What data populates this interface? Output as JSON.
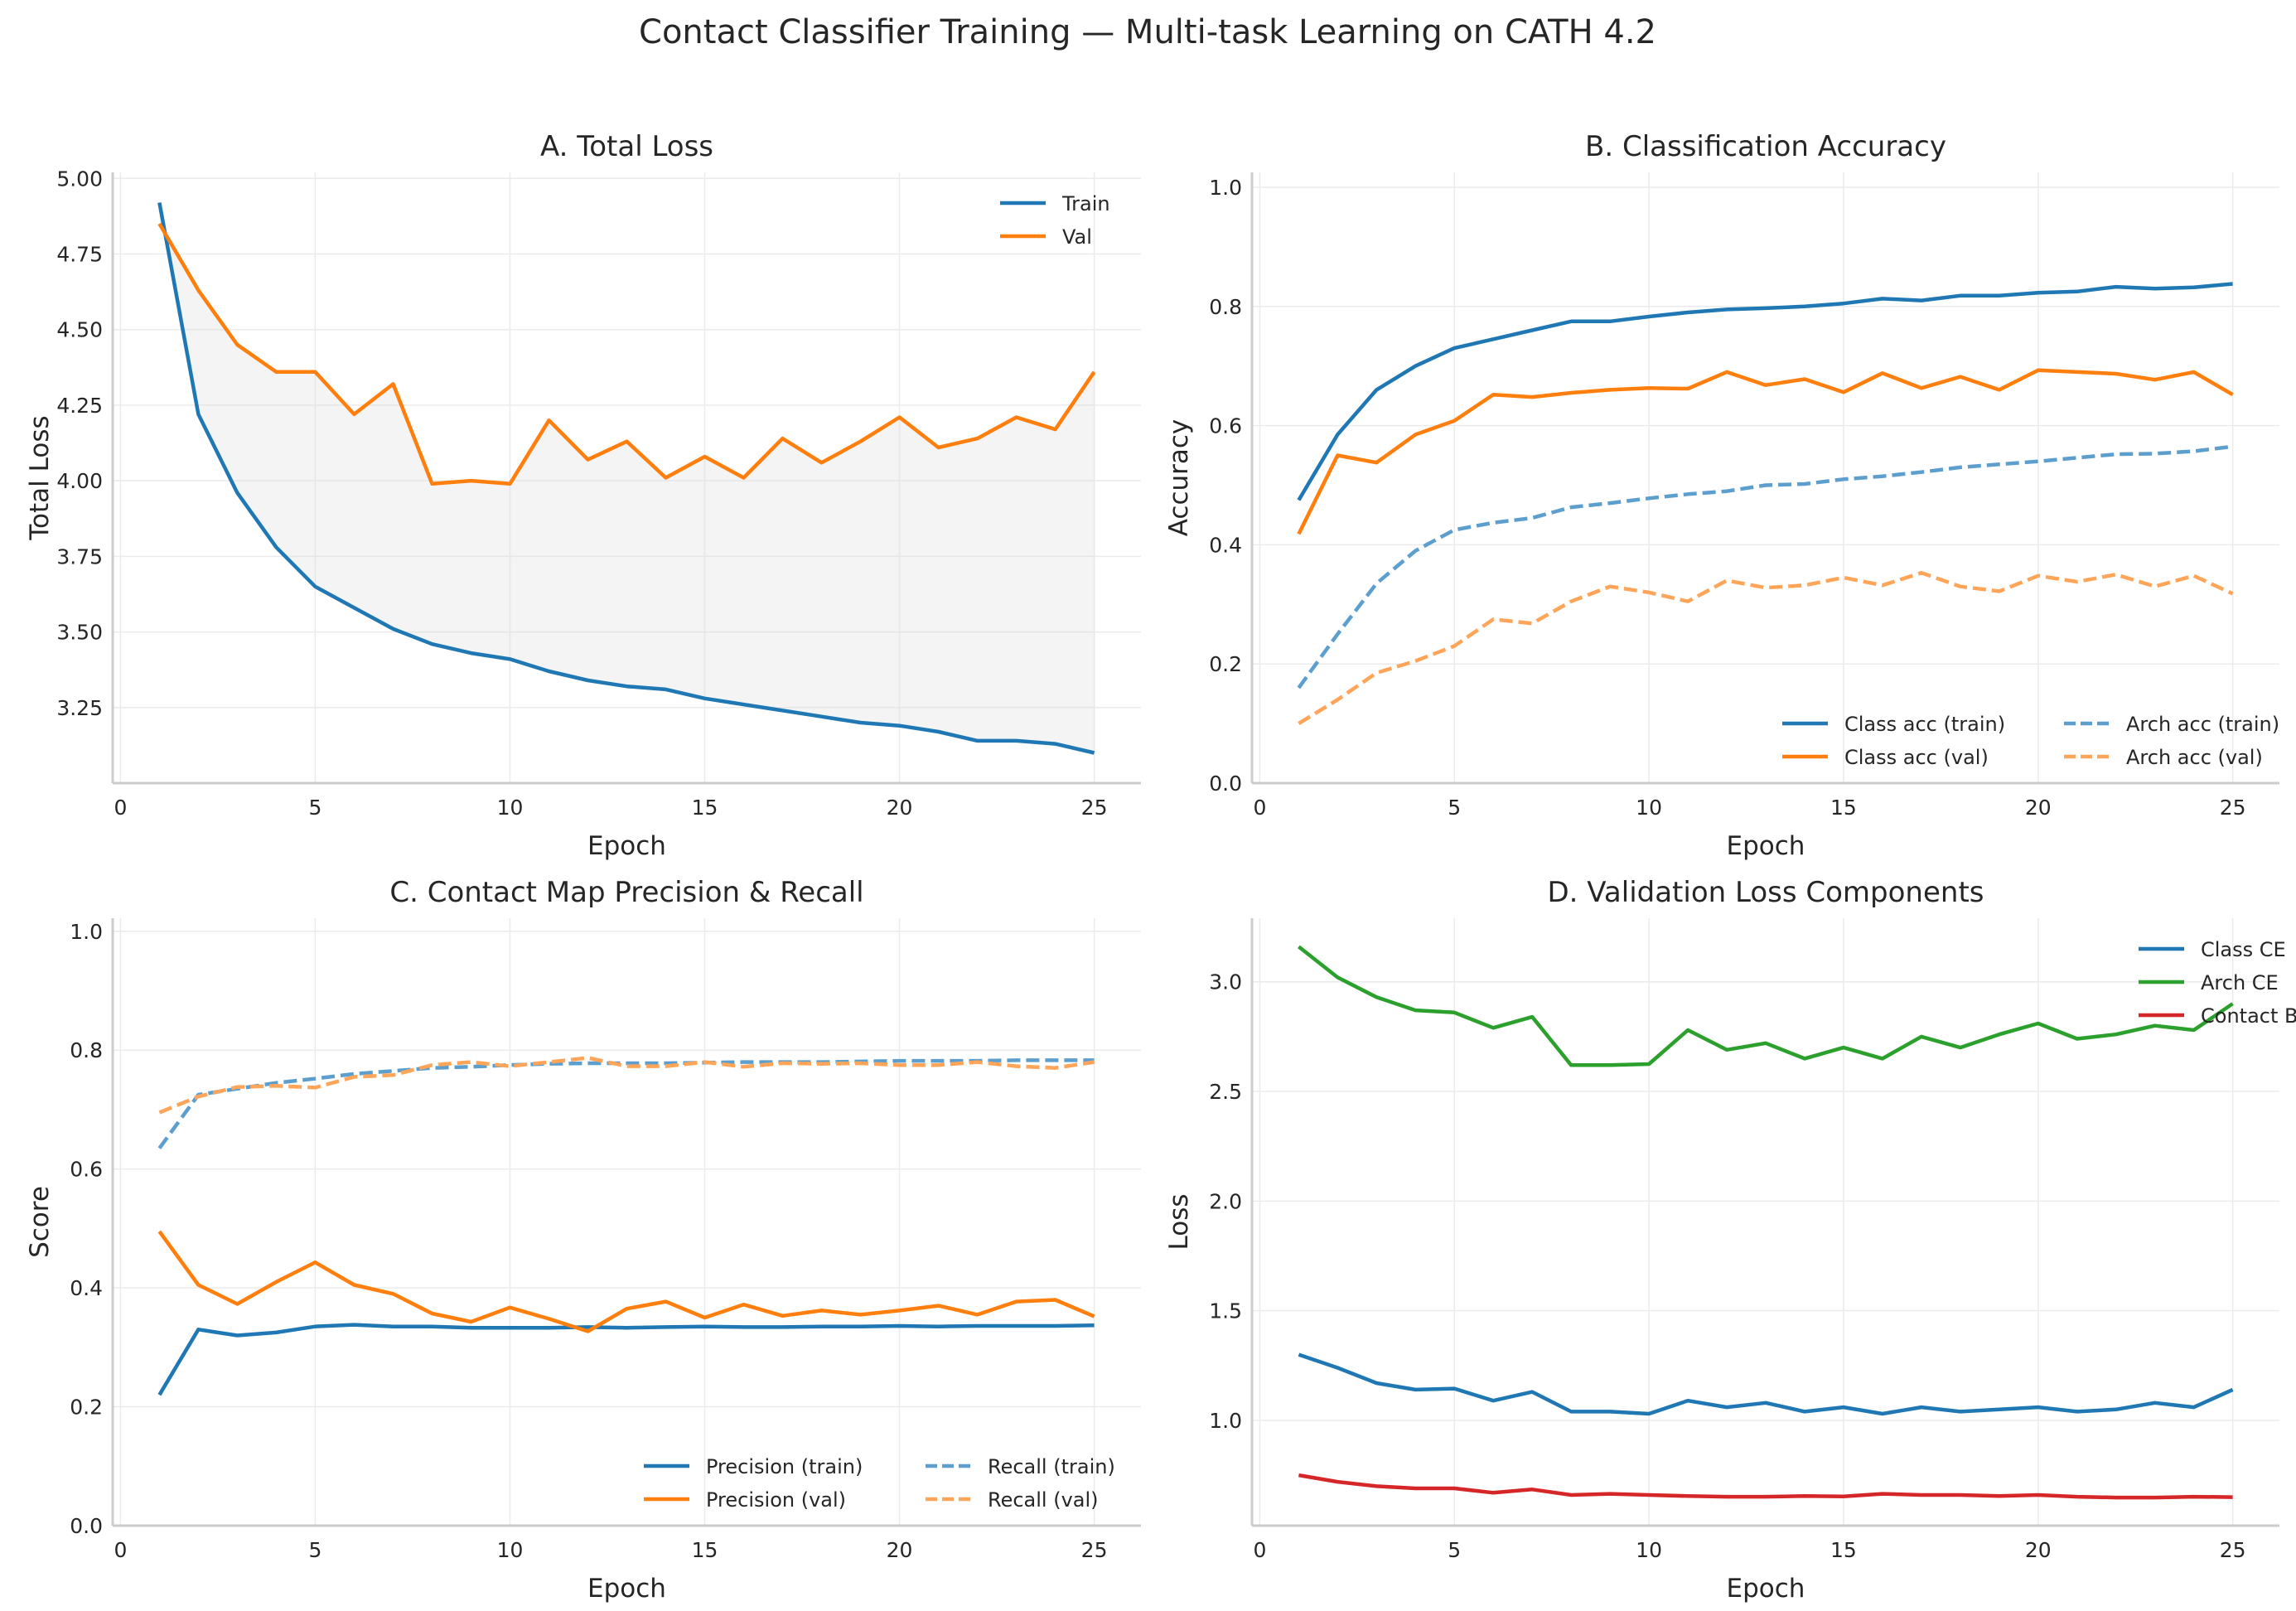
{
  "title": "Contact Classifier Training — Multi-task Learning on CATH 4.2",
  "chart_data": [
    {
      "type": "line",
      "title": "A.  Total Loss",
      "xlabel": "Epoch",
      "ylabel": "Total Loss",
      "xlim": [
        -0.2,
        26.2
      ],
      "ylim": [
        3.0,
        5.02
      ],
      "xticks": [
        0,
        5,
        10,
        15,
        20,
        25
      ],
      "yticks": [
        3.25,
        3.5,
        3.75,
        4.0,
        4.25,
        4.5,
        4.75,
        5.0
      ],
      "ytick_format": 2,
      "grid": true,
      "legend": "top-right",
      "legend_columns": 1,
      "fill_between": [
        0,
        1
      ],
      "fill_color": "#d9d9d9",
      "x": [
        1,
        2,
        3,
        4,
        5,
        6,
        7,
        8,
        9,
        10,
        11,
        12,
        13,
        14,
        15,
        16,
        17,
        18,
        19,
        20,
        21,
        22,
        23,
        24,
        25
      ],
      "series": [
        {
          "name": "Train",
          "color": "#1f77b4",
          "dashed": false,
          "values": [
            4.92,
            4.22,
            3.96,
            3.78,
            3.65,
            3.58,
            3.51,
            3.46,
            3.43,
            3.41,
            3.37,
            3.34,
            3.32,
            3.31,
            3.28,
            3.26,
            3.24,
            3.22,
            3.2,
            3.19,
            3.17,
            3.14,
            3.14,
            3.13,
            3.1
          ]
        },
        {
          "name": "Val",
          "color": "#ff7f0e",
          "dashed": false,
          "values": [
            4.85,
            4.63,
            4.45,
            4.36,
            4.36,
            4.22,
            4.32,
            3.99,
            4.0,
            3.99,
            4.2,
            4.07,
            4.13,
            4.01,
            4.08,
            4.01,
            4.14,
            4.06,
            4.13,
            4.21,
            4.11,
            4.14,
            4.21,
            4.17,
            4.36
          ]
        }
      ]
    },
    {
      "type": "line",
      "title": "B.  Classification Accuracy",
      "xlabel": "Epoch",
      "ylabel": "Accuracy",
      "xlim": [
        -0.2,
        26.2
      ],
      "ylim": [
        0,
        1.025
      ],
      "xticks": [
        0,
        5,
        10,
        15,
        20,
        25
      ],
      "yticks": [
        0.0,
        0.2,
        0.4,
        0.6,
        0.8,
        1.0
      ],
      "ytick_format": 1,
      "grid": true,
      "legend": "lower-right",
      "legend_columns": 2,
      "x": [
        1,
        2,
        3,
        4,
        5,
        6,
        7,
        8,
        9,
        10,
        11,
        12,
        13,
        14,
        15,
        16,
        17,
        18,
        19,
        20,
        21,
        22,
        23,
        24,
        25
      ],
      "series": [
        {
          "name": "Class acc (train)",
          "color": "#1f77b4",
          "dashed": false,
          "values": [
            0.475,
            0.585,
            0.66,
            0.7,
            0.73,
            0.745,
            0.76,
            0.775,
            0.775,
            0.783,
            0.79,
            0.795,
            0.797,
            0.8,
            0.805,
            0.813,
            0.81,
            0.818,
            0.818,
            0.823,
            0.825,
            0.833,
            0.83,
            0.832,
            0.838
          ]
        },
        {
          "name": "Class acc (val)",
          "color": "#ff7f0e",
          "dashed": false,
          "values": [
            0.418,
            0.55,
            0.538,
            0.585,
            0.608,
            0.652,
            0.648,
            0.655,
            0.66,
            0.663,
            0.662,
            0.69,
            0.668,
            0.678,
            0.656,
            0.688,
            0.663,
            0.682,
            0.66,
            0.693,
            0.69,
            0.687,
            0.677,
            0.69,
            0.652
          ]
        },
        {
          "name": "Arch acc (train)",
          "color": "#5c9fcf",
          "dashed": true,
          "values": [
            0.16,
            0.25,
            0.335,
            0.39,
            0.425,
            0.437,
            0.445,
            0.463,
            0.47,
            0.478,
            0.485,
            0.49,
            0.5,
            0.502,
            0.51,
            0.515,
            0.522,
            0.53,
            0.535,
            0.54,
            0.546,
            0.552,
            0.553,
            0.557,
            0.565
          ]
        },
        {
          "name": "Arch acc (val)",
          "color": "#ffa55a",
          "dashed": true,
          "values": [
            0.1,
            0.14,
            0.185,
            0.205,
            0.23,
            0.275,
            0.268,
            0.305,
            0.33,
            0.32,
            0.305,
            0.34,
            0.328,
            0.332,
            0.345,
            0.332,
            0.353,
            0.33,
            0.322,
            0.348,
            0.338,
            0.35,
            0.33,
            0.348,
            0.318
          ]
        }
      ]
    },
    {
      "type": "line",
      "title": "C.  Contact Map Precision & Recall",
      "xlabel": "Epoch",
      "ylabel": "Score",
      "xlim": [
        -0.2,
        26.2
      ],
      "ylim": [
        0,
        1.022
      ],
      "xticks": [
        0,
        5,
        10,
        15,
        20,
        25
      ],
      "yticks": [
        0.0,
        0.2,
        0.4,
        0.6,
        0.8,
        1.0
      ],
      "ytick_format": 1,
      "grid": true,
      "legend": "lower-right",
      "legend_columns": 2,
      "x": [
        1,
        2,
        3,
        4,
        5,
        6,
        7,
        8,
        9,
        10,
        11,
        12,
        13,
        14,
        15,
        16,
        17,
        18,
        19,
        20,
        21,
        22,
        23,
        24,
        25
      ],
      "series": [
        {
          "name": "Precision (train)",
          "color": "#1f77b4",
          "dashed": false,
          "values": [
            0.22,
            0.33,
            0.32,
            0.325,
            0.335,
            0.338,
            0.335,
            0.335,
            0.333,
            0.333,
            0.333,
            0.334,
            0.333,
            0.334,
            0.335,
            0.334,
            0.334,
            0.335,
            0.335,
            0.336,
            0.335,
            0.336,
            0.336,
            0.336,
            0.337
          ]
        },
        {
          "name": "Precision (val)",
          "color": "#ff7f0e",
          "dashed": false,
          "values": [
            0.495,
            0.405,
            0.373,
            0.41,
            0.443,
            0.405,
            0.39,
            0.357,
            0.343,
            0.367,
            0.348,
            0.327,
            0.365,
            0.377,
            0.35,
            0.372,
            0.353,
            0.362,
            0.355,
            0.362,
            0.37,
            0.355,
            0.377,
            0.38,
            0.352
          ]
        },
        {
          "name": "Recall (train)",
          "color": "#5c9fcf",
          "dashed": true,
          "values": [
            0.635,
            0.725,
            0.735,
            0.745,
            0.752,
            0.76,
            0.765,
            0.77,
            0.772,
            0.775,
            0.777,
            0.778,
            0.778,
            0.778,
            0.779,
            0.78,
            0.78,
            0.78,
            0.781,
            0.782,
            0.782,
            0.782,
            0.783,
            0.783,
            0.783
          ]
        },
        {
          "name": "Recall (val)",
          "color": "#ffa55a",
          "dashed": true,
          "values": [
            0.695,
            0.722,
            0.738,
            0.74,
            0.737,
            0.755,
            0.758,
            0.775,
            0.78,
            0.773,
            0.78,
            0.787,
            0.773,
            0.773,
            0.78,
            0.772,
            0.778,
            0.777,
            0.778,
            0.775,
            0.775,
            0.78,
            0.773,
            0.77,
            0.78
          ]
        }
      ]
    },
    {
      "type": "line",
      "title": "D.  Validation Loss Components",
      "xlabel": "Epoch",
      "ylabel": "Loss",
      "xlim": [
        -0.2,
        26.2
      ],
      "ylim": [
        0.52,
        3.29
      ],
      "xticks": [
        0,
        5,
        10,
        15,
        20,
        25
      ],
      "yticks": [
        1.0,
        1.5,
        2.0,
        2.5,
        3.0
      ],
      "ytick_format": 1,
      "grid": true,
      "legend": "top-right",
      "legend_columns": 1,
      "x": [
        1,
        2,
        3,
        4,
        5,
        6,
        7,
        8,
        9,
        10,
        11,
        12,
        13,
        14,
        15,
        16,
        17,
        18,
        19,
        20,
        21,
        22,
        23,
        24,
        25
      ],
      "series": [
        {
          "name": "Class CE",
          "color": "#1f77b4",
          "dashed": false,
          "values": [
            1.3,
            1.24,
            1.17,
            1.14,
            1.145,
            1.09,
            1.13,
            1.04,
            1.04,
            1.03,
            1.09,
            1.06,
            1.08,
            1.04,
            1.06,
            1.03,
            1.06,
            1.04,
            1.05,
            1.06,
            1.04,
            1.05,
            1.08,
            1.06,
            1.14
          ]
        },
        {
          "name": "Arch CE",
          "color": "#2ca02c",
          "dashed": false,
          "values": [
            3.16,
            3.02,
            2.93,
            2.87,
            2.86,
            2.79,
            2.84,
            2.62,
            2.62,
            2.625,
            2.78,
            2.69,
            2.72,
            2.65,
            2.7,
            2.65,
            2.75,
            2.7,
            2.76,
            2.81,
            2.74,
            2.76,
            2.8,
            2.78,
            2.9
          ]
        },
        {
          "name": "Contact BCE",
          "color": "#d62728",
          "dashed": false,
          "values": [
            0.75,
            0.72,
            0.7,
            0.69,
            0.69,
            0.67,
            0.685,
            0.66,
            0.665,
            0.66,
            0.655,
            0.652,
            0.652,
            0.655,
            0.653,
            0.665,
            0.66,
            0.66,
            0.655,
            0.66,
            0.652,
            0.648,
            0.648,
            0.652,
            0.65
          ]
        }
      ]
    }
  ]
}
